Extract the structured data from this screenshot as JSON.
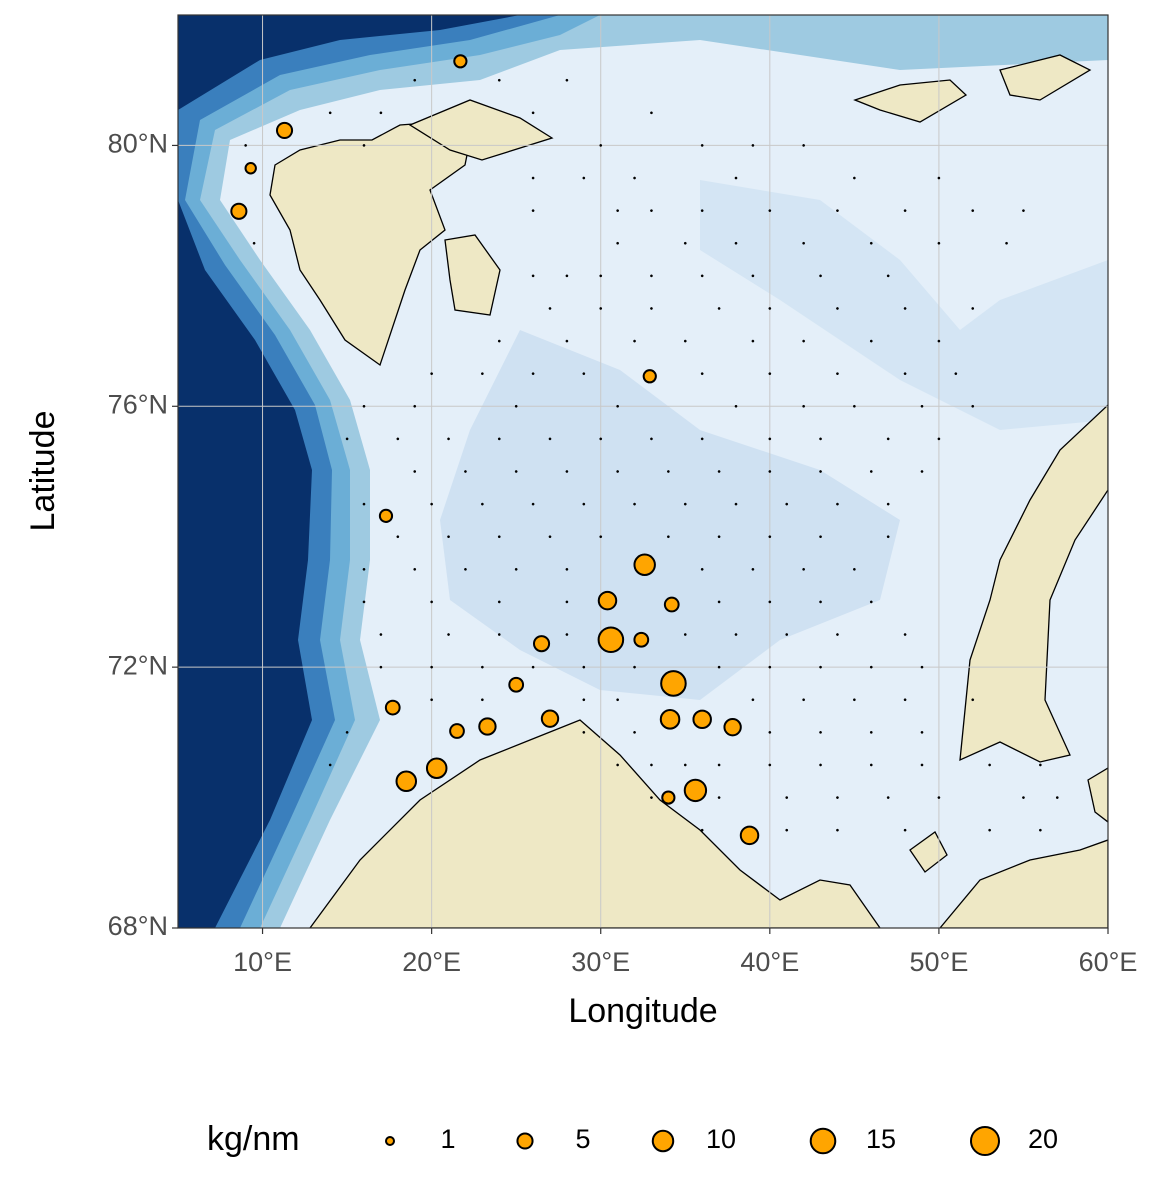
{
  "chart_data": {
    "type": "scatter",
    "xlabel": "Longitude",
    "ylabel": "Latitude",
    "color": "#ffa500",
    "xlim": [
      5,
      60
    ],
    "ylim": [
      68,
      82
    ],
    "xticks": [
      {
        "value": 10,
        "label": "10°E"
      },
      {
        "value": 20,
        "label": "20°E"
      },
      {
        "value": 30,
        "label": "30°E"
      },
      {
        "value": 40,
        "label": "40°E"
      },
      {
        "value": 50,
        "label": "50°E"
      },
      {
        "value": 60,
        "label": "60°E"
      }
    ],
    "yticks": [
      {
        "value": 68,
        "label": "68°N"
      },
      {
        "value": 72,
        "label": "72°N"
      },
      {
        "value": 76,
        "label": "76°N"
      },
      {
        "value": 80,
        "label": "80°N"
      }
    ],
    "grid": true,
    "legend": {
      "title": "kg/nm",
      "sizes": [
        1,
        5,
        10,
        15,
        20
      ],
      "position": "bottom"
    },
    "x": [
      21.7,
      11.3,
      9.3,
      8.6,
      32.9,
      17.3,
      32.6,
      30.4,
      34.2,
      26.5,
      30.6,
      32.4,
      34.3,
      25.0,
      17.7,
      27.0,
      34.1,
      36.0,
      37.8,
      23.3,
      21.5,
      20.3,
      18.5,
      34.0,
      35.6,
      38.8,
      19,
      24,
      28,
      14,
      17,
      26,
      33,
      9,
      16,
      30,
      36,
      39,
      42,
      26,
      29,
      32,
      38,
      45,
      50,
      26,
      31,
      33,
      36,
      40,
      44,
      48,
      52,
      55,
      9.5,
      31,
      35,
      38,
      42,
      46,
      50,
      54,
      26,
      28,
      30,
      33,
      36,
      39,
      43,
      47,
      27,
      30,
      33,
      37,
      40,
      44,
      48,
      52,
      24,
      28,
      32,
      35,
      39,
      42,
      46,
      50,
      20,
      23,
      26,
      29,
      36,
      40,
      44,
      48,
      51,
      16,
      19,
      25,
      31,
      38,
      42,
      45,
      49,
      52,
      15,
      18,
      21,
      24,
      27,
      30,
      33,
      36,
      40,
      43,
      47,
      50,
      19,
      22,
      25,
      28,
      31,
      34,
      37,
      40,
      43,
      46,
      49,
      16,
      20,
      23,
      26,
      29,
      32,
      35,
      38,
      41,
      44,
      47,
      18,
      21,
      24,
      27,
      30,
      34,
      37,
      40,
      43,
      47,
      16,
      19,
      22,
      25,
      28,
      36,
      39,
      42,
      45,
      16,
      20,
      24,
      28,
      37,
      40,
      43,
      46,
      17,
      21,
      24,
      28,
      35,
      38,
      41,
      44,
      48,
      17,
      20,
      23,
      26,
      29,
      32,
      37,
      40,
      43,
      46,
      49,
      20,
      23,
      29,
      31,
      39,
      42,
      45,
      48,
      52,
      15,
      29,
      32,
      40,
      43,
      46,
      49,
      14,
      31,
      33,
      35,
      37,
      40,
      43,
      46,
      49,
      53,
      56,
      33,
      37,
      41,
      44,
      47,
      50,
      55,
      57,
      36,
      41,
      44,
      48,
      53,
      56
    ],
    "y": [
      81.29,
      80.23,
      79.65,
      78.99,
      76.46,
      74.32,
      73.57,
      73.02,
      72.96,
      72.36,
      72.42,
      72.42,
      71.75,
      71.73,
      71.38,
      71.21,
      71.2,
      71.2,
      71.08,
      71.09,
      71.02,
      70.45,
      70.25,
      70.0,
      70.11,
      69.42,
      81,
      81,
      81,
      80.5,
      80.5,
      80.5,
      80.5,
      80,
      80,
      80,
      80,
      80,
      80,
      79.5,
      79.5,
      79.5,
      79.5,
      79.5,
      79.5,
      79,
      79,
      79,
      79,
      79,
      79,
      79,
      79,
      79,
      78.5,
      78.5,
      78.5,
      78.5,
      78.5,
      78.5,
      78.5,
      78.5,
      78,
      78,
      78,
      78,
      78,
      78,
      78,
      78,
      77.5,
      77.5,
      77.5,
      77.5,
      77.5,
      77.5,
      77.5,
      77.5,
      77,
      77,
      77,
      77,
      77,
      77,
      77,
      77,
      76.5,
      76.5,
      76.5,
      76.5,
      76.5,
      76.5,
      76.5,
      76.5,
      76.5,
      76,
      76,
      76,
      76,
      76,
      76,
      76,
      76,
      76,
      75.5,
      75.5,
      75.5,
      75.5,
      75.5,
      75.5,
      75.5,
      75.5,
      75.5,
      75.5,
      75.5,
      75.5,
      75,
      75,
      75,
      75,
      75,
      75,
      75,
      75,
      75,
      75,
      75,
      74.5,
      74.5,
      74.5,
      74.5,
      74.5,
      74.5,
      74.5,
      74.5,
      74.5,
      74.5,
      74.5,
      74,
      74,
      74,
      74,
      74,
      74,
      74,
      74,
      74,
      74,
      73.5,
      73.5,
      73.5,
      73.5,
      73.5,
      73.5,
      73.5,
      73.5,
      73.5,
      73,
      73,
      73,
      73,
      73,
      73,
      73,
      73,
      72.5,
      72.5,
      72.5,
      72.5,
      72.5,
      72.5,
      72.5,
      72.5,
      72.5,
      72,
      72,
      72,
      72,
      72,
      72,
      72,
      72,
      72,
      72,
      72,
      71.5,
      71.5,
      71.5,
      71.5,
      71.5,
      71.5,
      71.5,
      71.5,
      71.5,
      71,
      71,
      71,
      71,
      71,
      71,
      71,
      70.5,
      70.5,
      70.5,
      70.5,
      70.5,
      70.5,
      70.5,
      70.5,
      70.5,
      70.5,
      70.5,
      70,
      70,
      70,
      70,
      70,
      70,
      70,
      70,
      69.5,
      69.5,
      69.5,
      69.5,
      69.5,
      69.5
    ],
    "values": [
      3,
      5,
      2,
      5,
      3,
      3,
      10,
      7,
      4,
      5,
      15,
      4,
      15,
      4,
      4,
      6,
      8,
      7,
      6,
      6,
      4,
      9,
      9,
      3,
      11,
      7,
      0,
      0,
      0,
      0,
      0,
      0,
      0,
      0,
      0,
      0,
      0,
      0,
      0,
      0,
      0,
      0,
      0,
      0,
      0,
      0,
      0,
      0,
      0,
      0,
      0,
      0,
      0,
      0,
      0,
      0,
      0,
      0,
      0,
      0,
      0,
      0,
      0,
      0,
      0,
      0,
      0,
      0,
      0,
      0,
      0,
      0,
      0,
      0,
      0,
      0,
      0,
      0,
      0,
      0,
      0,
      0,
      0,
      0,
      0,
      0,
      0,
      0,
      0,
      0,
      0,
      0,
      0,
      0,
      0,
      0,
      0,
      0,
      0,
      0,
      0,
      0,
      0,
      0,
      0,
      0,
      0,
      0,
      0,
      0,
      0,
      0,
      0,
      0,
      0,
      0,
      0,
      0,
      0,
      0,
      0,
      0,
      0,
      0,
      0,
      0,
      0,
      0,
      0,
      0,
      0,
      0,
      0,
      0,
      0,
      0,
      0,
      0,
      0,
      0,
      0,
      0,
      0,
      0,
      0,
      0,
      0,
      0,
      0,
      0,
      0,
      0,
      0,
      0,
      0,
      0,
      0,
      0,
      0,
      0,
      0,
      0,
      0,
      0,
      0,
      0,
      0,
      0,
      0,
      0,
      0,
      0,
      0,
      0,
      0,
      0,
      0,
      0,
      0,
      0,
      0,
      0,
      0,
      0,
      0,
      0,
      0,
      0,
      0,
      0,
      0,
      0,
      0,
      0,
      0,
      0,
      0,
      0,
      0,
      0,
      0,
      0,
      0,
      0,
      0,
      0,
      0,
      0,
      0,
      0,
      0,
      0,
      0,
      0,
      0,
      0,
      0,
      0,
      0,
      0,
      0,
      0,
      0,
      0,
      0,
      0
    ]
  }
}
